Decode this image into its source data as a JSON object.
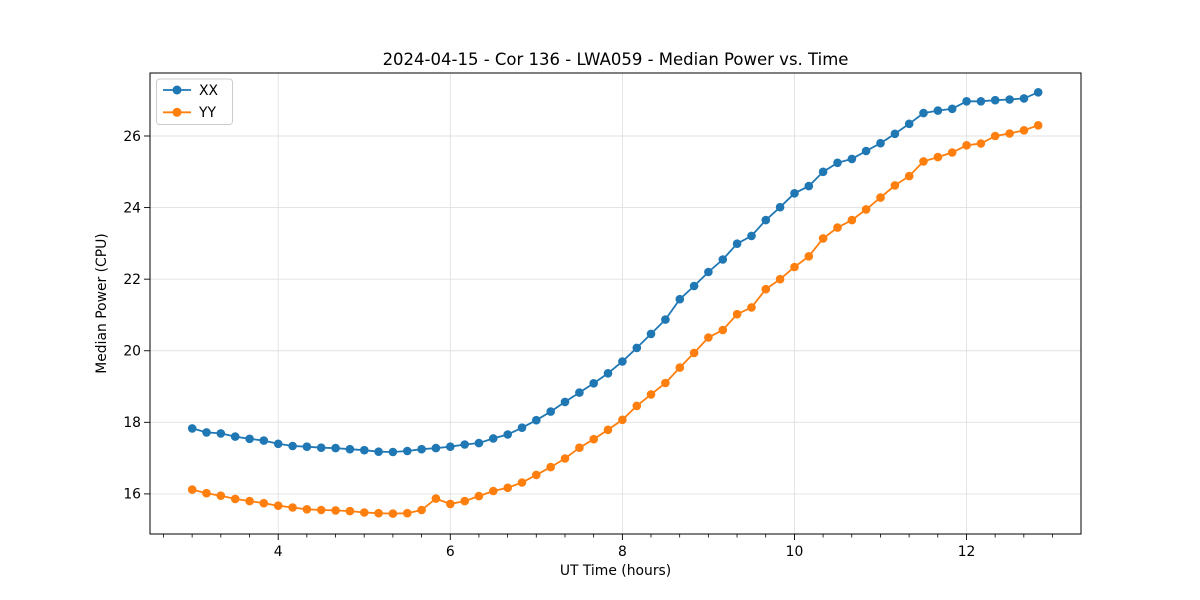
{
  "header": {
    "title": "2024-04-15 - Cor 136 - LWA059 - Median Power vs. Time"
  },
  "chart_data": {
    "type": "line",
    "title": "2024-04-15 - Cor 136 - LWA059 - Median Power vs. Time",
    "xlabel": "UT Time (hours)",
    "ylabel": "Median Power (CPU)",
    "xlim": [
      2.51,
      13.33
    ],
    "ylim": [
      14.88,
      27.76
    ],
    "x_ticks": [
      4,
      6,
      8,
      10,
      12
    ],
    "x_minor_tick_step": 0.3333,
    "y_ticks": [
      16,
      18,
      20,
      22,
      24,
      26
    ],
    "grid": true,
    "grid_color": "#e0e0e0",
    "legend_position": "upper left",
    "marker": "circle",
    "x": [
      3.0,
      3.167,
      3.333,
      3.5,
      3.667,
      3.833,
      4.0,
      4.167,
      4.333,
      4.5,
      4.667,
      4.833,
      5.0,
      5.167,
      5.333,
      5.5,
      5.667,
      5.833,
      6.0,
      6.167,
      6.333,
      6.5,
      6.667,
      6.833,
      7.0,
      7.167,
      7.333,
      7.5,
      7.667,
      7.833,
      8.0,
      8.167,
      8.333,
      8.5,
      8.667,
      8.833,
      9.0,
      9.167,
      9.333,
      9.5,
      9.667,
      9.833,
      10.0,
      10.167,
      10.333,
      10.5,
      10.667,
      10.833,
      11.0,
      11.167,
      11.333,
      11.5,
      11.667,
      11.833,
      12.0,
      12.167,
      12.333,
      12.5,
      12.667,
      12.833
    ],
    "series": [
      {
        "name": "XX",
        "color": "#1f77b4",
        "values": [
          17.83,
          17.72,
          17.69,
          17.6,
          17.54,
          17.49,
          17.4,
          17.34,
          17.32,
          17.29,
          17.28,
          17.25,
          17.22,
          17.18,
          17.17,
          17.2,
          17.25,
          17.28,
          17.32,
          17.38,
          17.42,
          17.55,
          17.66,
          17.85,
          18.06,
          18.3,
          18.57,
          18.83,
          19.09,
          19.37,
          19.7,
          20.08,
          20.47,
          20.87,
          21.44,
          21.81,
          22.2,
          22.55,
          22.99,
          23.21,
          23.65,
          24.01,
          24.4,
          24.6,
          25.0,
          25.25,
          25.36,
          25.58,
          25.8,
          26.06,
          26.34,
          26.64,
          26.71,
          26.76,
          26.97,
          26.97,
          27.0,
          27.02,
          27.05,
          27.22
        ]
      },
      {
        "name": "YY",
        "color": "#ff7f0e",
        "values": [
          16.12,
          16.02,
          15.95,
          15.86,
          15.8,
          15.74,
          15.67,
          15.62,
          15.57,
          15.55,
          15.54,
          15.52,
          15.48,
          15.46,
          15.45,
          15.46,
          15.55,
          15.87,
          15.72,
          15.8,
          15.94,
          16.08,
          16.17,
          16.32,
          16.53,
          16.75,
          16.99,
          17.29,
          17.53,
          17.79,
          18.07,
          18.46,
          18.78,
          19.1,
          19.53,
          19.94,
          20.37,
          20.58,
          21.02,
          21.21,
          21.72,
          22.0,
          22.34,
          22.64,
          23.14,
          23.44,
          23.65,
          23.95,
          24.28,
          24.62,
          24.88,
          25.29,
          25.41,
          25.54,
          25.74,
          25.79,
          26.0,
          26.07,
          26.16,
          26.3
        ]
      }
    ]
  }
}
